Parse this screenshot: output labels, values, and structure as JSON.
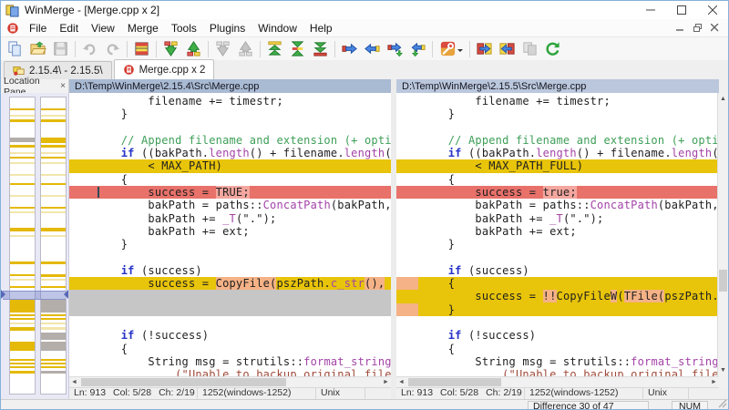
{
  "window": {
    "title": "WinMerge - [Merge.cpp x 2]"
  },
  "menu": {
    "items": [
      "File",
      "Edit",
      "View",
      "Merge",
      "Tools",
      "Plugins",
      "Window",
      "Help"
    ]
  },
  "toolbar": {
    "buttons": [
      {
        "name": "new-compare-button",
        "icon": "pages-icon"
      },
      {
        "name": "open-button",
        "icon": "folder-open-icon"
      },
      {
        "name": "save-button",
        "icon": "save-icon",
        "disabled": true
      },
      {
        "sep": true
      },
      {
        "name": "undo-button",
        "icon": "undo-icon",
        "disabled": true
      },
      {
        "name": "redo-button",
        "icon": "redo-icon",
        "disabled": true
      },
      {
        "sep": true
      },
      {
        "name": "view-diff-pane-button",
        "icon": "diff-pane-icon"
      },
      {
        "sep": true
      },
      {
        "name": "next-difference-button",
        "icon": "arrow-down-green-icon"
      },
      {
        "name": "previous-difference-button",
        "icon": "arrow-up-green-icon"
      },
      {
        "sep": true
      },
      {
        "name": "next-conflict-button",
        "icon": "arrow-down-gray-icon",
        "disabled": true
      },
      {
        "name": "previous-conflict-button",
        "icon": "arrow-up-gray-icon",
        "disabled": true
      },
      {
        "sep": true
      },
      {
        "name": "first-difference-button",
        "icon": "double-arrow-top-icon"
      },
      {
        "name": "current-difference-button",
        "icon": "double-arrow-mid-icon"
      },
      {
        "name": "last-difference-button",
        "icon": "double-arrow-bottom-icon"
      },
      {
        "sep": true
      },
      {
        "name": "copy-right-button",
        "icon": "blue-arrow-right-icon"
      },
      {
        "name": "copy-left-button",
        "icon": "blue-arrow-left-icon"
      },
      {
        "name": "copy-right-advance-button",
        "icon": "blue-arrow-right-advance-icon"
      },
      {
        "name": "copy-left-advance-button",
        "icon": "blue-arrow-left-advance-icon"
      },
      {
        "sep": true
      },
      {
        "name": "auto-merge-button",
        "icon": "wrench-icon",
        "dropdown": true
      },
      {
        "sep": true
      },
      {
        "name": "copy-all-right-button",
        "icon": "copy-all-right-icon"
      },
      {
        "name": "copy-all-left-button",
        "icon": "copy-all-left-icon"
      },
      {
        "name": "swap-panes-button",
        "icon": "swap-gray-icon",
        "disabled": true
      },
      {
        "name": "refresh-button",
        "icon": "refresh-icon"
      }
    ]
  },
  "tabs": [
    {
      "label": "2.15.4\\ - 2.15.5\\",
      "icon": "folder-compare-icon",
      "active": false
    },
    {
      "label": "Merge.cpp x 2",
      "icon": "merge-doc-icon",
      "active": true
    }
  ],
  "location_pane": {
    "title": "Location Pane",
    "close_label": "×",
    "bars": [
      {
        "stripes": [
          [
            12,
            2,
            "g"
          ],
          [
            19,
            2,
            "p"
          ],
          [
            24,
            3,
            "g"
          ],
          [
            44,
            5,
            "gr"
          ],
          [
            52,
            3,
            "g"
          ],
          [
            60,
            2,
            "p"
          ],
          [
            65,
            2,
            "g"
          ],
          [
            71,
            2,
            "p"
          ],
          [
            84,
            2,
            "p"
          ],
          [
            94,
            2,
            "g"
          ],
          [
            107,
            2,
            "p"
          ],
          [
            120,
            2,
            "g"
          ],
          [
            125,
            2,
            "p"
          ],
          [
            143,
            4,
            "g"
          ],
          [
            151,
            2,
            "p"
          ],
          [
            180,
            3,
            "g"
          ],
          [
            194,
            2,
            "g"
          ],
          [
            199,
            2,
            "p"
          ],
          [
            207,
            2,
            "g"
          ],
          [
            222,
            14,
            "g"
          ],
          [
            238,
            2,
            "g"
          ],
          [
            242,
            2,
            "g"
          ],
          [
            247,
            2,
            "p"
          ],
          [
            252,
            4,
            "g"
          ],
          [
            268,
            10,
            "g"
          ],
          [
            287,
            2,
            "g"
          ],
          [
            291,
            2,
            "g"
          ],
          [
            295,
            2,
            "g"
          ],
          [
            300,
            3,
            "g"
          ]
        ]
      },
      {
        "stripes": [
          [
            12,
            2,
            "g"
          ],
          [
            19,
            2,
            "p"
          ],
          [
            24,
            3,
            "g"
          ],
          [
            44,
            6,
            "g"
          ],
          [
            52,
            3,
            "g"
          ],
          [
            60,
            2,
            "p"
          ],
          [
            65,
            2,
            "g"
          ],
          [
            71,
            2,
            "p"
          ],
          [
            84,
            2,
            "p"
          ],
          [
            94,
            2,
            "g"
          ],
          [
            107,
            2,
            "p"
          ],
          [
            120,
            2,
            "g"
          ],
          [
            125,
            2,
            "p"
          ],
          [
            143,
            4,
            "g"
          ],
          [
            151,
            2,
            "p"
          ],
          [
            180,
            3,
            "g"
          ],
          [
            194,
            3,
            "g"
          ],
          [
            199,
            2,
            "p"
          ],
          [
            207,
            2,
            "g"
          ],
          [
            222,
            14,
            "gr"
          ],
          [
            238,
            2,
            "g"
          ],
          [
            242,
            2,
            "g"
          ],
          [
            247,
            2,
            "p"
          ],
          [
            252,
            3,
            "p"
          ],
          [
            258,
            8,
            "gr"
          ],
          [
            268,
            10,
            "gr"
          ],
          [
            287,
            2,
            "g"
          ],
          [
            291,
            2,
            "g"
          ],
          [
            295,
            2,
            "g"
          ],
          [
            300,
            3,
            "gr"
          ]
        ]
      }
    ]
  },
  "panes": [
    {
      "header": "D:\\Temp\\WinMerge\\2.15.4\\Src\\Merge.cpp",
      "status": {
        "line": "Ln: 913",
        "col": "Col: 5/28",
        "ch": "Ch: 2/19",
        "encoding": "1252(windows-1252)",
        "eol": "Unix"
      },
      "lines": [
        {
          "seg": [
            [
              "        filename += timestr;",
              "d"
            ]
          ]
        },
        {
          "seg": [
            [
              "    }",
              "d"
            ]
          ]
        },
        {
          "seg": []
        },
        {
          "seg": [
            [
              "    // Append filename and extension (+ optional",
              "c"
            ]
          ]
        },
        {
          "seg": [
            [
              "    ",
              "d"
            ],
            [
              "if",
              "k"
            ],
            [
              " ((bakPath.",
              "d"
            ],
            [
              "length",
              "p"
            ],
            [
              "() + filename.",
              "d"
            ],
            [
              "length",
              "p"
            ],
            [
              "()",
              "d"
            ]
          ]
        },
        {
          "bg": "diff",
          "seg": [
            [
              "        < MAX_PATH)",
              "d"
            ]
          ]
        },
        {
          "seg": [
            [
              "    {",
              "d"
            ]
          ]
        },
        {
          "bg": "seldiff",
          "caret": true,
          "seg": [
            [
              "        success = ",
              "d"
            ],
            [
              "TRUE;",
              "d",
              1
            ]
          ]
        },
        {
          "seg": [
            [
              "        bakPath = paths::",
              "d"
            ],
            [
              "ConcatPath",
              "p"
            ],
            [
              "(bakPath,",
              "d"
            ]
          ]
        },
        {
          "seg": [
            [
              "        bakPath += ",
              "d"
            ],
            [
              "_T",
              "p"
            ],
            [
              "(\".\");",
              "d"
            ]
          ]
        },
        {
          "seg": [
            [
              "        bakPath += ext;",
              "d"
            ]
          ]
        },
        {
          "seg": [
            [
              "    }",
              "d"
            ]
          ]
        },
        {
          "seg": []
        },
        {
          "seg": [
            [
              "    ",
              "d"
            ],
            [
              "if",
              "k"
            ],
            [
              " (success)",
              "d"
            ]
          ]
        },
        {
          "bg": "diff",
          "seg": [
            [
              "        success = ",
              "d"
            ],
            [
              "CopyFile(",
              "d",
              1
            ],
            [
              "pszPath.",
              "d"
            ],
            [
              "c_str",
              "p"
            ],
            [
              "(),",
              "d",
              1
            ]
          ]
        },
        {
          "bg": "ghost",
          "seg": []
        },
        {
          "bg": "ghost",
          "seg": []
        },
        {
          "seg": []
        },
        {
          "seg": [
            [
              "    ",
              "d"
            ],
            [
              "if",
              "k"
            ],
            [
              " (!success)",
              "d"
            ]
          ]
        },
        {
          "seg": [
            [
              "    {",
              "d"
            ]
          ]
        },
        {
          "seg": [
            [
              "        String msg = strutils::",
              "d"
            ],
            [
              "format_string",
              "p"
            ]
          ]
        },
        {
          "seg": [
            [
              "            (\"Unable to backup original file\"",
              "s"
            ]
          ]
        }
      ]
    },
    {
      "header": "D:\\Temp\\WinMerge\\2.15.5\\Src\\Merge.cpp",
      "status": {
        "line": "Ln: 913",
        "col": "Col: 5/28",
        "ch": "Ch: 2/19",
        "encoding": "1252(windows-1252)",
        "eol": "Unix"
      },
      "lines": [
        {
          "seg": [
            [
              "        filename += timestr;",
              "d"
            ]
          ]
        },
        {
          "seg": [
            [
              "    }",
              "d"
            ]
          ]
        },
        {
          "seg": []
        },
        {
          "seg": [
            [
              "    // Append filename and extension (+ optional",
              "c"
            ]
          ]
        },
        {
          "seg": [
            [
              "    ",
              "d"
            ],
            [
              "if",
              "k"
            ],
            [
              " ((bakPath.",
              "d"
            ],
            [
              "length",
              "p"
            ],
            [
              "() + filename.",
              "d"
            ],
            [
              "length",
              "p"
            ],
            [
              "()",
              "d"
            ]
          ]
        },
        {
          "bg": "diff",
          "seg": [
            [
              "        < MAX_PATH_FULL)",
              "d"
            ]
          ]
        },
        {
          "seg": [
            [
              "    {",
              "d"
            ]
          ]
        },
        {
          "bg": "seldiff",
          "seg": [
            [
              "        success = ",
              "d"
            ],
            [
              "true;",
              "d",
              1
            ]
          ]
        },
        {
          "seg": [
            [
              "        bakPath = paths::",
              "d"
            ],
            [
              "ConcatPath",
              "p"
            ],
            [
              "(bakPath,",
              "d"
            ]
          ]
        },
        {
          "seg": [
            [
              "        bakPath += ",
              "d"
            ],
            [
              "_T",
              "p"
            ],
            [
              "(\".\");",
              "d"
            ]
          ]
        },
        {
          "seg": [
            [
              "        bakPath += ext;",
              "d"
            ]
          ]
        },
        {
          "seg": [
            [
              "    }",
              "d"
            ]
          ]
        },
        {
          "seg": []
        },
        {
          "seg": [
            [
              "    ",
              "d"
            ],
            [
              "if",
              "k"
            ],
            [
              " (success)",
              "d"
            ]
          ]
        },
        {
          "bg": "diff",
          "margin": true,
          "seg": [
            [
              "    {",
              "d"
            ]
          ]
        },
        {
          "bg": "diff",
          "seg": [
            [
              "        success = ",
              "d"
            ],
            [
              "!!",
              "d",
              1
            ],
            [
              "CopyFile",
              "d"
            ],
            [
              "W",
              "d",
              1
            ],
            [
              "(",
              "d"
            ],
            [
              "TFile(",
              "d",
              1
            ],
            [
              "pszPath.",
              "d"
            ]
          ]
        },
        {
          "bg": "diff",
          "margin": true,
          "seg": [
            [
              "    }",
              "d"
            ]
          ]
        },
        {
          "seg": []
        },
        {
          "seg": [
            [
              "    ",
              "d"
            ],
            [
              "if",
              "k"
            ],
            [
              " (!success)",
              "d"
            ]
          ]
        },
        {
          "seg": [
            [
              "    {",
              "d"
            ]
          ]
        },
        {
          "seg": [
            [
              "        String msg = strutils::",
              "d"
            ],
            [
              "format_string",
              "p"
            ]
          ]
        },
        {
          "seg": [
            [
              "            (\"Unable to backup original file\"",
              "s"
            ]
          ]
        }
      ]
    }
  ],
  "bottom_bar": {
    "difference": "Difference 30 of 47",
    "num": "NUM"
  },
  "colors": {
    "diff_bg": "#e8c40a",
    "word_diff_bg": "#f5b286",
    "selected_diff_bg": "#e8716a",
    "selected_word_bg": "#f4a79f",
    "ghost_bg": "#c6c6c6",
    "comment": "#3d9e57",
    "keyword": "#2633c8",
    "function": "#a343a8",
    "string": "#a04a3a",
    "header_bg_left": "#a9bad3",
    "header_bg_right": "#bac7dc",
    "stripe_gold": "#e4b907",
    "stripe_pale": "#f2e6ad",
    "stripe_gray": "#b3aeaa"
  }
}
